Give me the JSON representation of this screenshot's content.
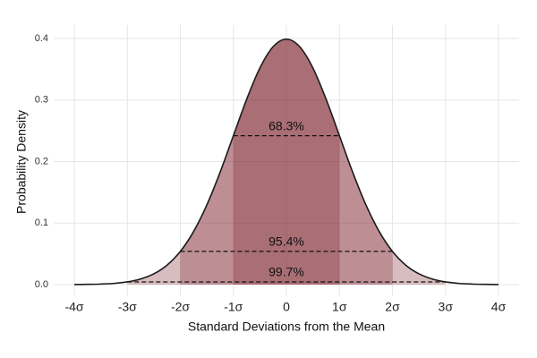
{
  "chart_data": {
    "type": "area",
    "x_label": "Standard Deviations from the Mean",
    "y_label": "Probability Density",
    "x": [
      -4,
      -3.75,
      -3.5,
      -3.25,
      -3,
      -2.75,
      -2.5,
      -2.25,
      -2,
      -1.75,
      -1.5,
      -1.25,
      -1,
      -0.75,
      -0.5,
      -0.25,
      0,
      0.25,
      0.5,
      0.75,
      1,
      1.25,
      1.5,
      1.75,
      2,
      2.25,
      2.5,
      2.75,
      3,
      3.25,
      3.5,
      3.75,
      4
    ],
    "values": [
      0.0001,
      0.0004,
      0.0009,
      0.002,
      0.0044,
      0.0091,
      0.0175,
      0.0317,
      0.054,
      0.0863,
      0.1295,
      0.1826,
      0.242,
      0.3011,
      0.3521,
      0.3867,
      0.3989,
      0.3867,
      0.3521,
      0.3011,
      0.242,
      0.1826,
      0.1295,
      0.0863,
      0.054,
      0.0317,
      0.0175,
      0.0091,
      0.0044,
      0.002,
      0.0009,
      0.0004,
      0.0001
    ],
    "line_color": "#1a1a1a",
    "regions": [
      {
        "label": "99.7%",
        "from": -3,
        "to": 3,
        "level": 0.0044
      },
      {
        "label": "95.4%",
        "from": -2,
        "to": 2,
        "level": 0.054
      },
      {
        "label": "68.3%",
        "from": -1,
        "to": 1,
        "level": 0.242
      }
    ],
    "region_color": "#7d2530",
    "region_opacity": 0.3,
    "xlim": [
      -4,
      4
    ],
    "xticks": [
      {
        "value": -4,
        "label": "-4σ"
      },
      {
        "value": -3,
        "label": "-3σ"
      },
      {
        "value": -2,
        "label": "-2σ"
      },
      {
        "value": -1,
        "label": "-1σ"
      },
      {
        "value": 0,
        "label": "0"
      },
      {
        "value": 1,
        "label": "1σ"
      },
      {
        "value": 2,
        "label": "2σ"
      },
      {
        "value": 3,
        "label": "3σ"
      },
      {
        "value": 4,
        "label": "4σ"
      }
    ],
    "ylim": [
      0,
      0.4
    ],
    "yticks": [
      {
        "value": 0,
        "label": "0.0"
      },
      0.1,
      0.2,
      0.3,
      0.4
    ],
    "grid": true
  }
}
